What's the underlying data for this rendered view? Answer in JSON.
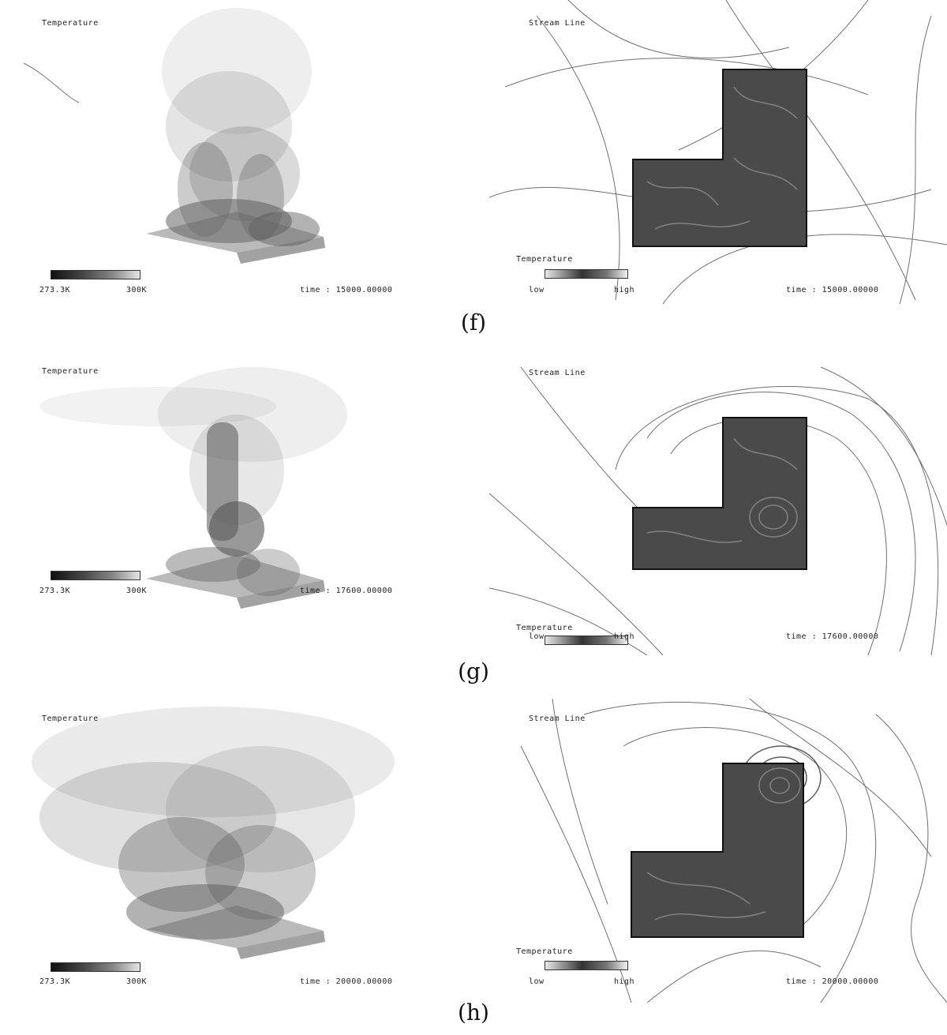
{
  "rows": [
    {
      "caption": "(f)",
      "left": {
        "title": "Temperature",
        "cmin": "273.3K",
        "cmax": "300K",
        "time": "time : 15000.00000"
      },
      "right": {
        "title": "Stream Line",
        "legend_title": "Temperature",
        "low": "low",
        "high": "high",
        "time": "time : 15000.00000"
      }
    },
    {
      "caption": "(g)",
      "left": {
        "title": "Temperature",
        "cmin": "273.3K",
        "cmax": "300K",
        "time": "time : 17600.00000"
      },
      "right": {
        "title": "Stream Line",
        "legend_title": "Temperature",
        "low": "low",
        "high": "high",
        "time": "time : 17600.00000"
      }
    },
    {
      "caption": "(h)",
      "left": {
        "title": "Temperature",
        "cmin": "273.3K",
        "cmax": "300K",
        "time": "time : 20000.00000"
      },
      "right": {
        "title": "Stream Line",
        "legend_title": "Temperature",
        "low": "low",
        "high": "high",
        "time": "time : 20000.00000"
      }
    }
  ]
}
